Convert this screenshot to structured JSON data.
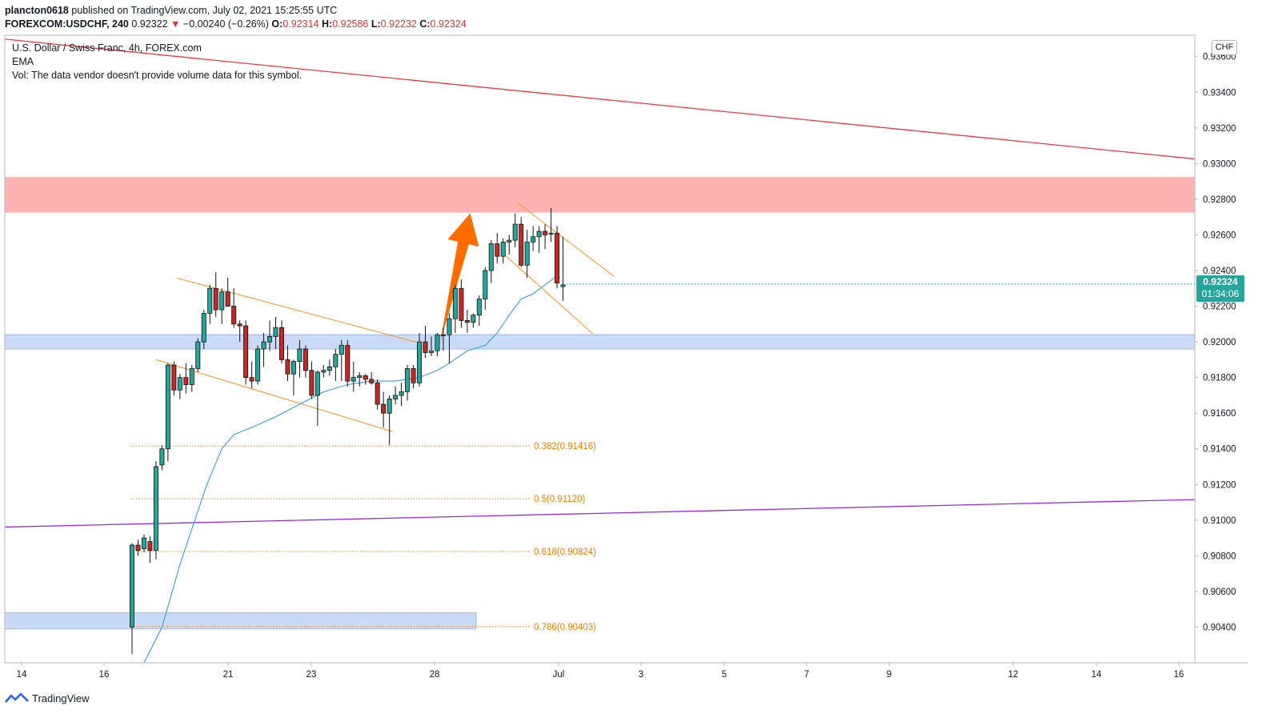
{
  "header": {
    "publisher": "plancton0618",
    "published_text": "published on TradingView.com, July 02, 2021 15:25:55 UTC"
  },
  "ohlc": {
    "symbol": "FOREXCOM:USDCHF, 240",
    "last": "0.92322",
    "arrow": "▼",
    "change": "−0.00240 (−0.26%)",
    "open_label": "O:",
    "open": "0.92314",
    "high_label": "H:",
    "high": "0.92586",
    "low_label": "L:",
    "low": "0.92232",
    "close_label": "C:",
    "close": "0.92324"
  },
  "legend": {
    "title": "U.S. Dollar / Swiss Franc, 4h, FOREX.com",
    "ema": "EMA",
    "vol": "Vol: The data vendor doesn't provide volume data for this symbol."
  },
  "price_axis": {
    "currency": "CHF",
    "current_price": "0.92324",
    "countdown": "01:34:06"
  },
  "brand": {
    "name": "TradingView"
  },
  "colors": {
    "up": "#26a69a",
    "down": "#ef5350",
    "candle_up_body": "#26a69a",
    "candle_down_body": "#c62828",
    "ema": "#3a9ad9",
    "resistance_zone": "#ffb3b3",
    "support_zone": "#c9dbf7",
    "channel": "#f7941d",
    "fib": "#f57c00",
    "trend_red": "#f23645",
    "trend_purple": "#9c27e0",
    "arrow": "#ff6d00"
  },
  "chart_data": {
    "type": "candlestick",
    "symbol": "FOREXCOM:USDCHF",
    "timeframe": "4h",
    "ylim": [
      0.902,
      0.9372
    ],
    "yticks": [
      0.904,
      0.906,
      0.908,
      0.91,
      0.912,
      0.914,
      0.916,
      0.918,
      0.92,
      0.922,
      0.924,
      0.926,
      0.928,
      0.93,
      0.932,
      0.934,
      0.936
    ],
    "ytick_labels": [
      "0.90400",
      "0.90600",
      "0.90800",
      "0.91000",
      "0.91200",
      "0.91400",
      "0.91600",
      "0.91800",
      "0.92000",
      "0.92200",
      "0.92400",
      "0.92600",
      "0.92800",
      "0.93000",
      "0.93200",
      "0.93400",
      "0.93600"
    ],
    "xtick_labels": [
      "14",
      "16",
      "21",
      "23",
      "28",
      "Jul",
      "3",
      "5",
      "7",
      "9",
      "12",
      "14",
      "16"
    ],
    "candles": [
      [
        0.904,
        0.9087,
        0.9025,
        0.9086
      ],
      [
        0.9086,
        0.9089,
        0.908,
        0.9083
      ],
      [
        0.9084,
        0.9092,
        0.9082,
        0.909
      ],
      [
        0.9088,
        0.9091,
        0.9076,
        0.9083
      ],
      [
        0.9083,
        0.9133,
        0.9078,
        0.913
      ],
      [
        0.9131,
        0.9142,
        0.9128,
        0.914
      ],
      [
        0.914,
        0.9188,
        0.9133,
        0.9187
      ],
      [
        0.9187,
        0.9189,
        0.917,
        0.9173
      ],
      [
        0.9173,
        0.9182,
        0.9168,
        0.918
      ],
      [
        0.918,
        0.9188,
        0.9171,
        0.9176
      ],
      [
        0.9176,
        0.9187,
        0.9172,
        0.9185
      ],
      [
        0.9185,
        0.9202,
        0.9183,
        0.92
      ],
      [
        0.92,
        0.9218,
        0.9196,
        0.9216
      ],
      [
        0.9216,
        0.9232,
        0.921,
        0.923
      ],
      [
        0.923,
        0.9239,
        0.9214,
        0.9218
      ],
      [
        0.9218,
        0.923,
        0.921,
        0.9228
      ],
      [
        0.9228,
        0.9236,
        0.922,
        0.922
      ],
      [
        0.922,
        0.923,
        0.9208,
        0.921
      ],
      [
        0.921,
        0.9212,
        0.92,
        0.9209
      ],
      [
        0.9209,
        0.9212,
        0.9176,
        0.918
      ],
      [
        0.918,
        0.9189,
        0.9174,
        0.9178
      ],
      [
        0.9178,
        0.9198,
        0.9176,
        0.9196
      ],
      [
        0.9196,
        0.9205,
        0.9186,
        0.92
      ],
      [
        0.92,
        0.9212,
        0.9195,
        0.9203
      ],
      [
        0.9203,
        0.9214,
        0.9196,
        0.9208
      ],
      [
        0.9208,
        0.9212,
        0.9188,
        0.919
      ],
      [
        0.919,
        0.9198,
        0.9178,
        0.9182
      ],
      [
        0.9182,
        0.919,
        0.917,
        0.9189
      ],
      [
        0.9189,
        0.9201,
        0.918,
        0.9196
      ],
      [
        0.9196,
        0.9198,
        0.918,
        0.9184
      ],
      [
        0.9184,
        0.9189,
        0.9168,
        0.917
      ],
      [
        0.917,
        0.9184,
        0.9153,
        0.9183
      ],
      [
        0.9183,
        0.9187,
        0.918,
        0.9184
      ],
      [
        0.9184,
        0.919,
        0.9181,
        0.9186
      ],
      [
        0.9186,
        0.9196,
        0.9178,
        0.9193
      ],
      [
        0.9193,
        0.9201,
        0.9178,
        0.9198
      ],
      [
        0.9198,
        0.9201,
        0.9175,
        0.9178
      ],
      [
        0.9178,
        0.9189,
        0.9172,
        0.918
      ],
      [
        0.918,
        0.9183,
        0.9175,
        0.9181
      ],
      [
        0.9181,
        0.9182,
        0.9176,
        0.9179
      ],
      [
        0.9179,
        0.9183,
        0.9176,
        0.9177
      ],
      [
        0.9177,
        0.9179,
        0.9162,
        0.9165
      ],
      [
        0.9165,
        0.9172,
        0.9152,
        0.916
      ],
      [
        0.916,
        0.917,
        0.9142,
        0.9168
      ],
      [
        0.9168,
        0.9175,
        0.9165,
        0.917
      ],
      [
        0.917,
        0.9177,
        0.9164,
        0.9172
      ],
      [
        0.9172,
        0.9187,
        0.9167,
        0.9185
      ],
      [
        0.9185,
        0.9187,
        0.9174,
        0.9177
      ],
      [
        0.9177,
        0.9205,
        0.9175,
        0.92
      ],
      [
        0.92,
        0.9209,
        0.9191,
        0.9194
      ],
      [
        0.9194,
        0.9203,
        0.9192,
        0.9195
      ],
      [
        0.9195,
        0.9205,
        0.9192,
        0.9204
      ],
      [
        0.9204,
        0.9208,
        0.9195,
        0.9204
      ],
      [
        0.9204,
        0.9216,
        0.9188,
        0.9213
      ],
      [
        0.9213,
        0.9232,
        0.9205,
        0.923
      ],
      [
        0.923,
        0.9235,
        0.9208,
        0.9212
      ],
      [
        0.9212,
        0.9218,
        0.9205,
        0.9211
      ],
      [
        0.9211,
        0.9216,
        0.9208,
        0.9215
      ],
      [
        0.9215,
        0.9226,
        0.9209,
        0.9224
      ],
      [
        0.9224,
        0.9242,
        0.9218,
        0.924
      ],
      [
        0.924,
        0.9257,
        0.9233,
        0.9255
      ],
      [
        0.9255,
        0.9261,
        0.9244,
        0.9248
      ],
      [
        0.9248,
        0.9258,
        0.9244,
        0.9256
      ],
      [
        0.9256,
        0.926,
        0.9249,
        0.9257
      ],
      [
        0.9257,
        0.9272,
        0.9253,
        0.9266
      ],
      [
        0.9266,
        0.927,
        0.9242,
        0.9243
      ],
      [
        0.9243,
        0.9263,
        0.9236,
        0.9256
      ],
      [
        0.9256,
        0.9265,
        0.9251,
        0.9259
      ],
      [
        0.9259,
        0.9265,
        0.925,
        0.9262
      ],
      [
        0.9262,
        0.9266,
        0.9252,
        0.926
      ],
      [
        0.9261,
        0.9275,
        0.9256,
        0.9261
      ],
      [
        0.9261,
        0.9265,
        0.923,
        0.9233
      ],
      [
        0.9231,
        0.9259,
        0.9223,
        0.9232
      ]
    ],
    "ema_path": [
      [
        0.902,
        2
      ],
      [
        0.904,
        5
      ],
      [
        0.9075,
        8
      ],
      [
        0.91,
        10.5
      ],
      [
        0.912,
        12.5
      ],
      [
        0.914,
        15
      ],
      [
        0.9148,
        17
      ],
      [
        0.9152,
        20
      ],
      [
        0.9158,
        24
      ],
      [
        0.9165,
        28
      ],
      [
        0.9172,
        32
      ],
      [
        0.9176,
        36
      ],
      [
        0.9178,
        40
      ],
      [
        0.9178,
        44
      ],
      [
        0.918,
        48
      ],
      [
        0.9184,
        51
      ],
      [
        0.9188,
        53
      ],
      [
        0.9195,
        56
      ],
      [
        0.9198,
        59
      ],
      [
        0.9205,
        61
      ],
      [
        0.9215,
        63
      ],
      [
        0.9224,
        65
      ],
      [
        0.9227,
        67
      ],
      [
        0.9232,
        69
      ],
      [
        0.9237,
        71
      ],
      [
        0.9236,
        71.5
      ]
    ],
    "resistance_zone": [
      0.92725,
      0.92925
    ],
    "support_zone": [
      0.9196,
      0.9204
    ],
    "demand_zone": [
      0.9039,
      0.9048
    ],
    "fib_levels": [
      {
        "ratio": "0.382",
        "price": 0.91416,
        "label": "0.382(0.91416)"
      },
      {
        "ratio": "0.5",
        "price": 0.9112,
        "label": "0.5(0.91120)"
      },
      {
        "ratio": "0.618",
        "price": 0.90824,
        "label": "0.618(0.90824)"
      },
      {
        "ratio": "0.786",
        "price": 0.90403,
        "label": "0.786(0.90403)"
      }
    ],
    "trendline_red": [
      [
        0.9366,
        -10
      ],
      [
        0.9318,
        132
      ]
    ],
    "trendline_purple": [
      [
        0.9097,
        -10
      ],
      [
        0.9108,
        132
      ]
    ],
    "channel1_upper": [
      [
        0.92358,
        7.5
      ],
      [
        0.91998,
        47.5
      ]
    ],
    "channel1_lower": [
      [
        0.919,
        4
      ],
      [
        0.91497,
        43.5
      ]
    ],
    "channel2_upper": [
      [
        0.92777,
        64.5
      ],
      [
        0.92368,
        80.5
      ]
    ],
    "channel2_lower": [
      [
        0.9248,
        62.5
      ],
      [
        0.92045,
        77
      ]
    ],
    "arrow": {
      "from": [
        0.92,
        51.5
      ],
      "to": [
        0.92721,
        56.5
      ]
    }
  }
}
